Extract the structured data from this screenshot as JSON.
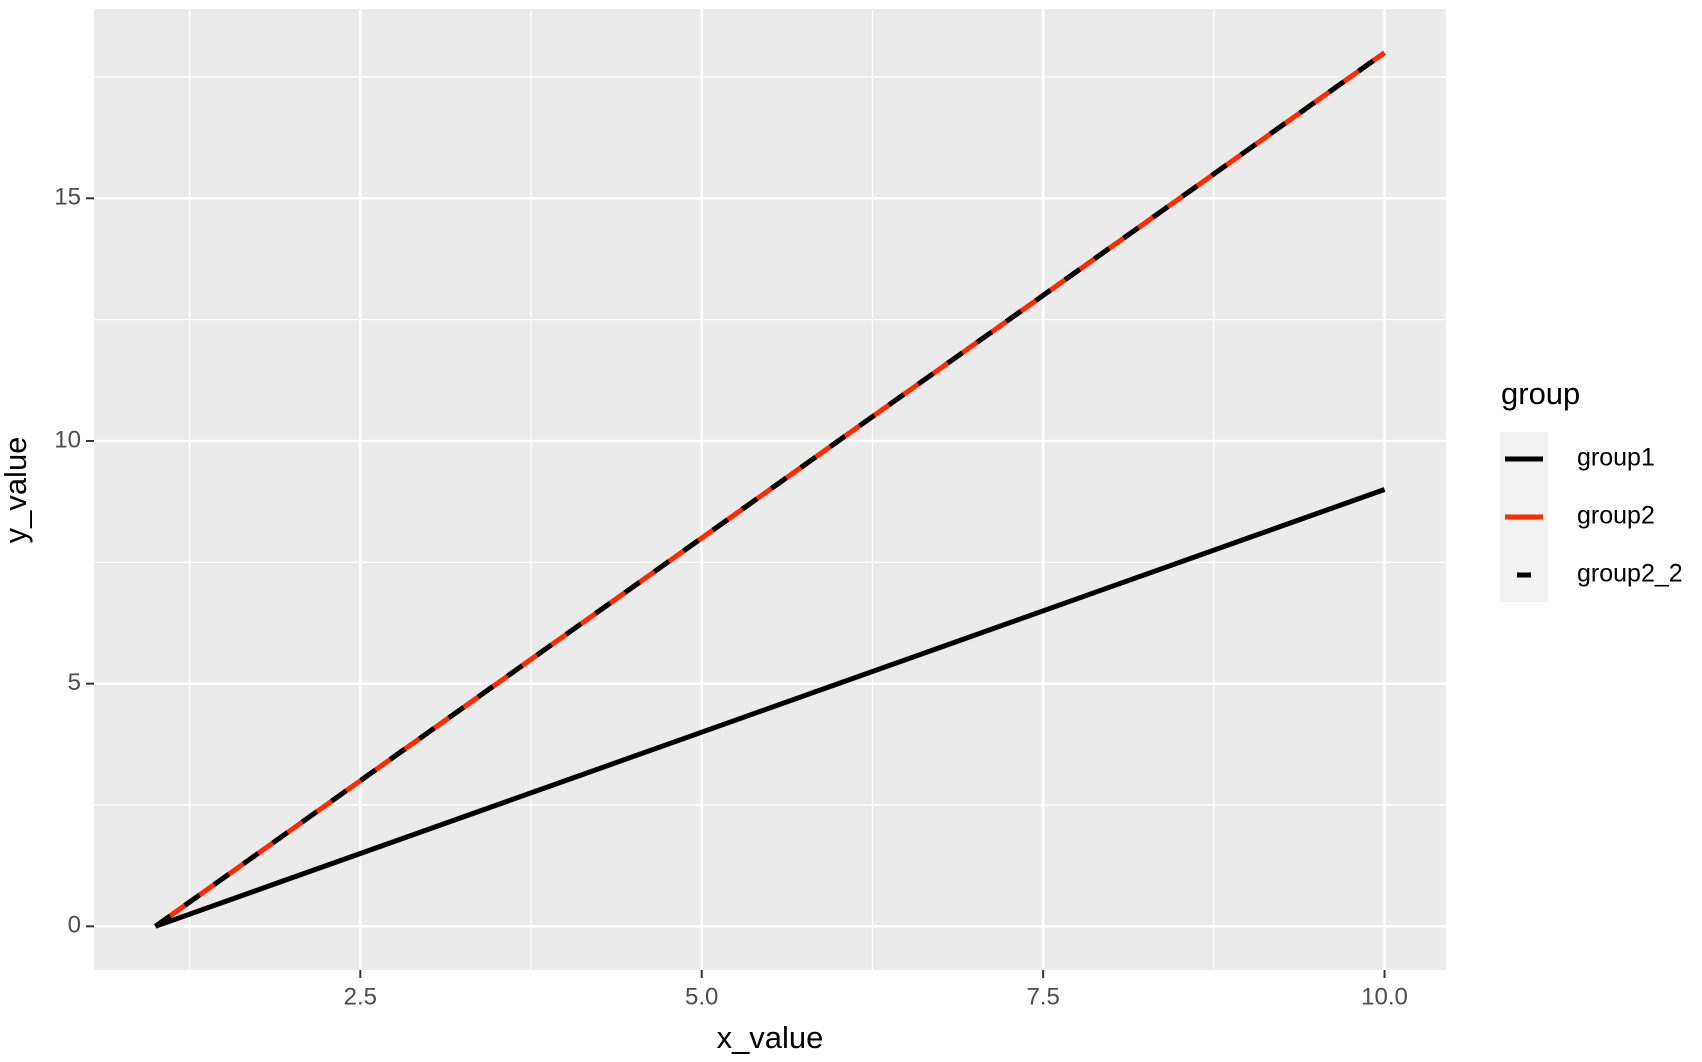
{
  "chart_data": {
    "type": "line",
    "x_label": "x_value",
    "y_label": "y_value",
    "x": [
      1,
      2,
      3,
      4,
      5,
      6,
      7,
      8,
      9,
      10
    ],
    "series": [
      {
        "name": "group1",
        "color": "#000000",
        "linetype": "solid",
        "values": [
          0,
          1,
          2,
          3,
          4,
          5,
          6,
          7,
          8,
          9
        ]
      },
      {
        "name": "group2",
        "color": "#ff2a00",
        "linetype": "solid",
        "values": [
          0,
          2,
          4,
          6,
          8,
          10,
          12,
          14,
          16,
          18
        ]
      },
      {
        "name": "group2_2",
        "color": "#000000",
        "linetype": "dashed",
        "values": [
          0,
          2,
          4,
          6,
          8,
          10,
          12,
          14,
          16,
          18
        ]
      }
    ],
    "legend_title": "group",
    "legend_position": "right",
    "xlim": [
      0.55,
      10.45
    ],
    "xticks": [
      2.5,
      {
        "value": 5,
        "label": "5.0"
      },
      7.5,
      {
        "value": 10,
        "label": "10.0"
      }
    ],
    "ylim": [
      -0.9,
      18.9
    ],
    "yticks": [
      0,
      5,
      10,
      15
    ],
    "grid": true
  }
}
